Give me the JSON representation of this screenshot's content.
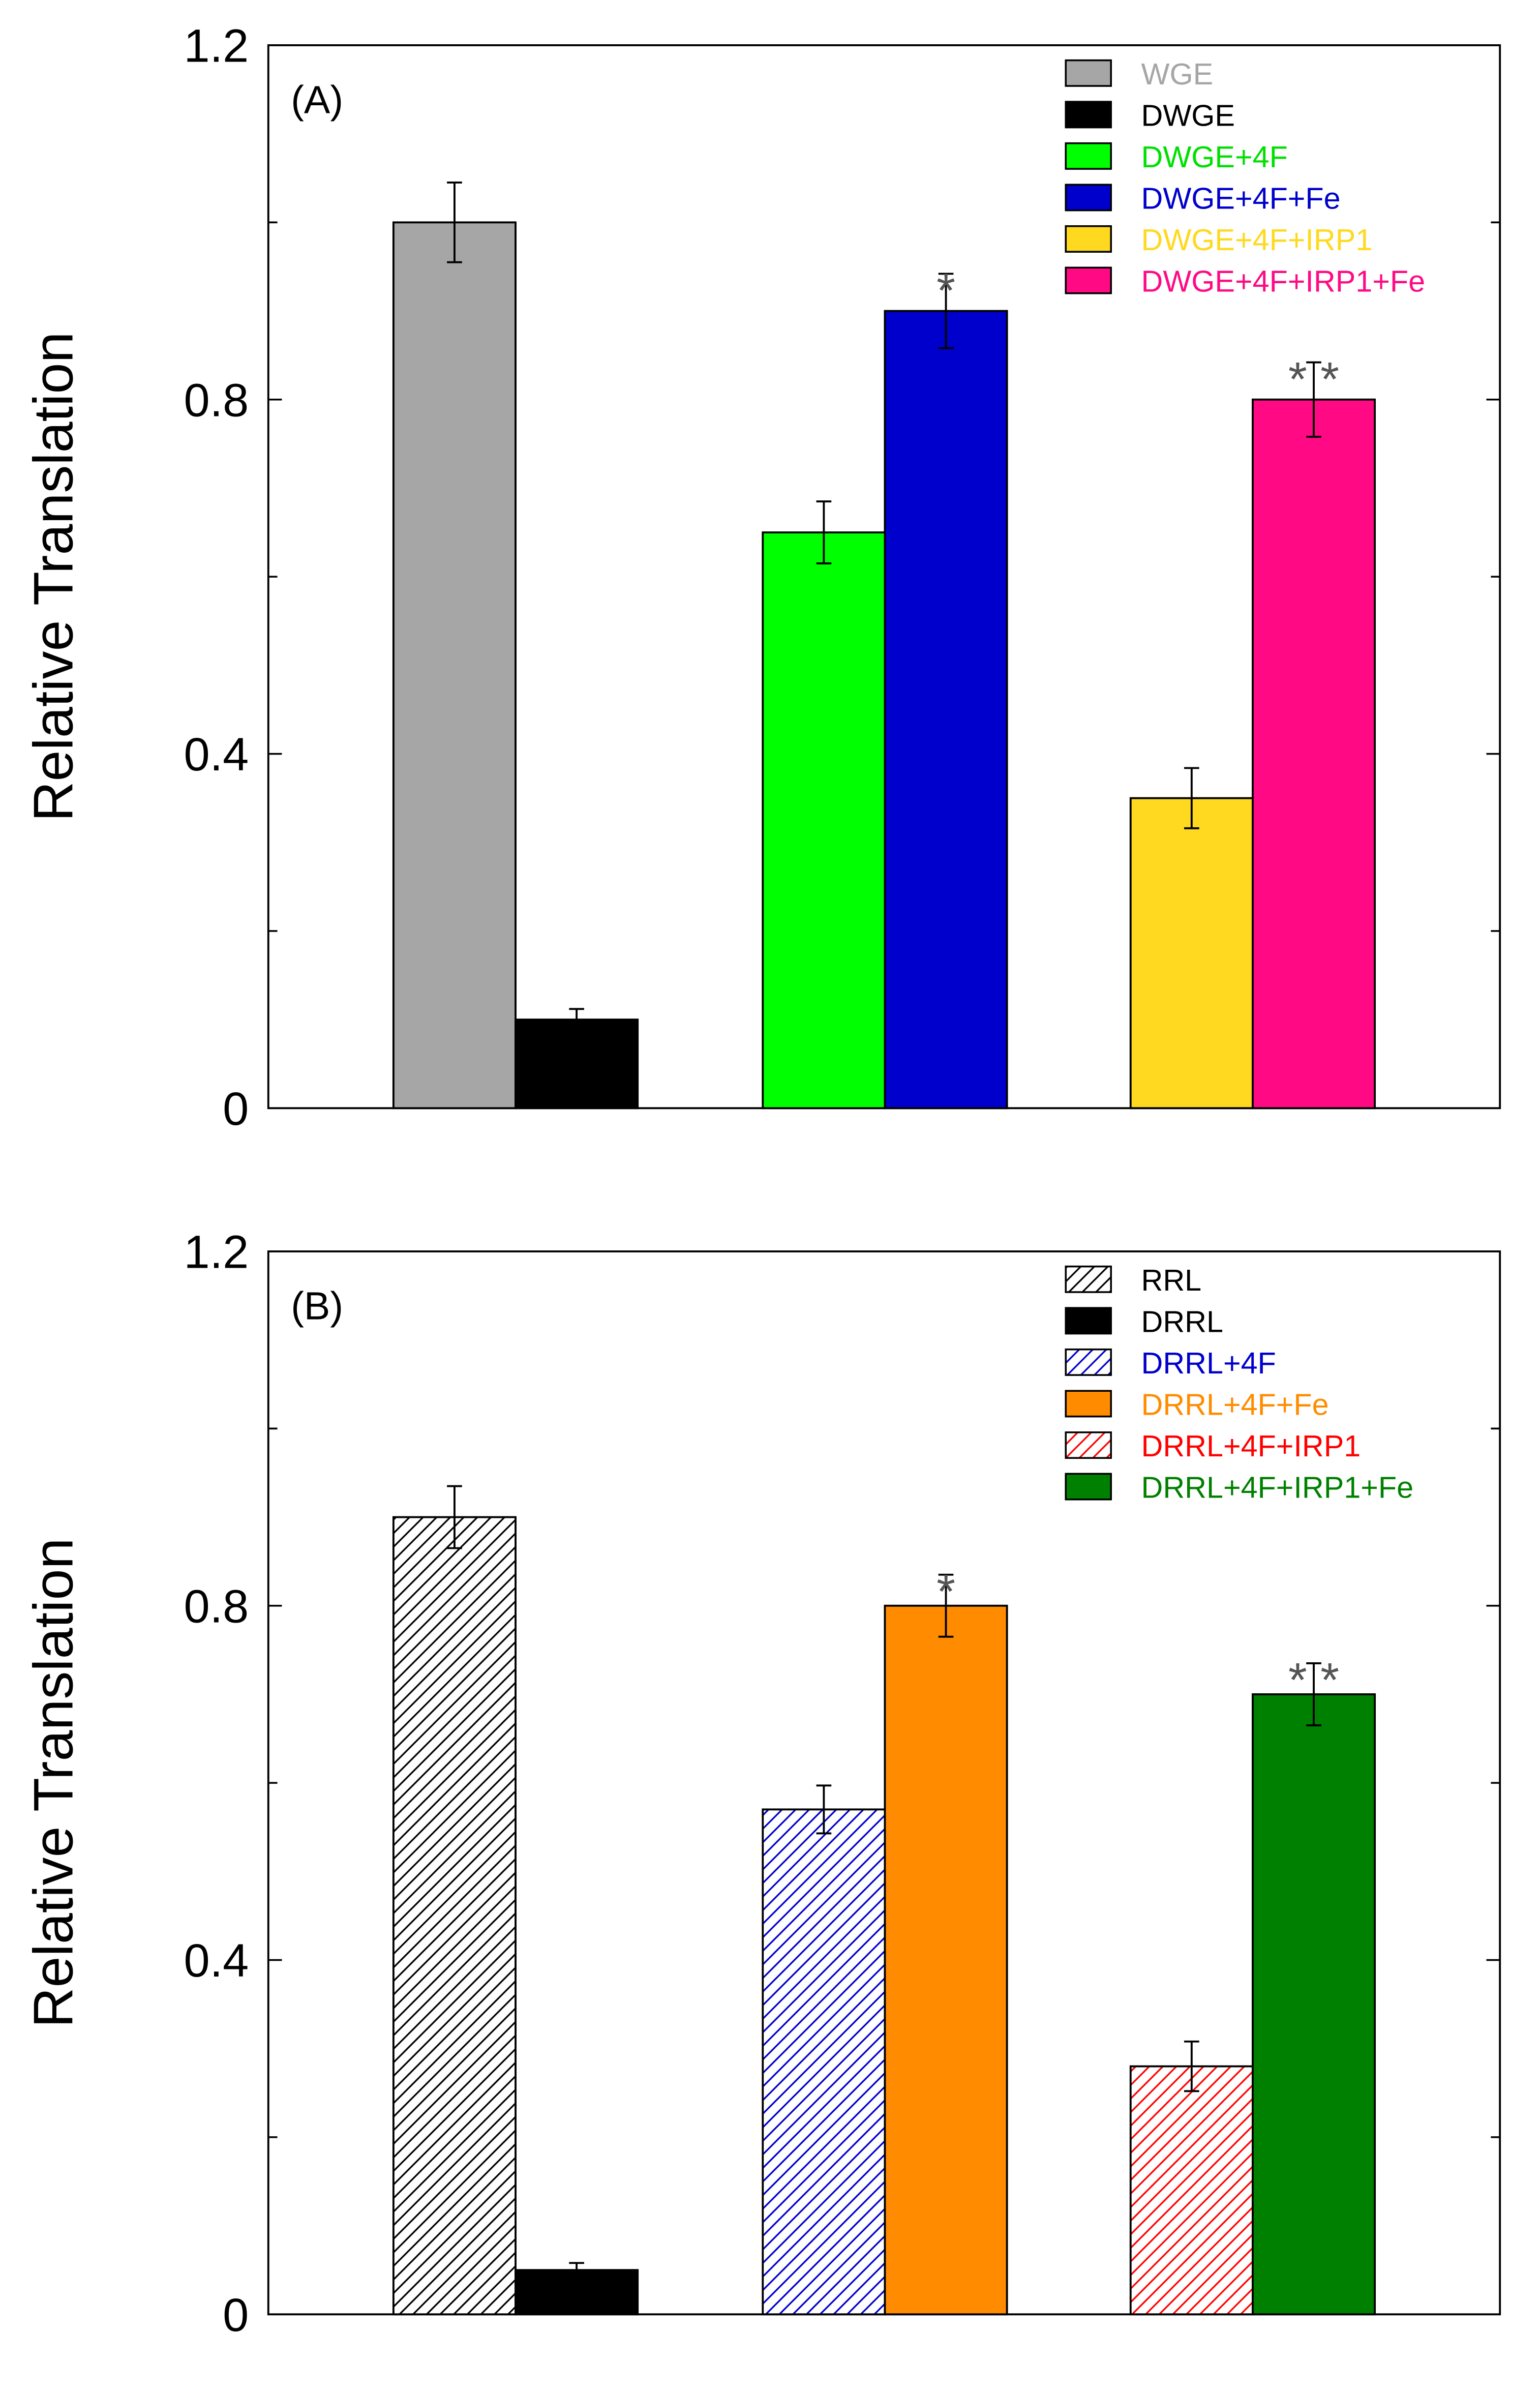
{
  "chart_data": [
    {
      "type": "bar",
      "panel_label": "(A)",
      "ylabel": "Relative Translation",
      "ylim": [
        0,
        1.2
      ],
      "yticks": [
        0,
        0.4,
        0.8,
        1.2
      ],
      "ytick_labels": [
        "0",
        "0.4",
        "0.8",
        "1.2"
      ],
      "legend_position": "top-right",
      "series": [
        {
          "name": "WGE",
          "value": 1.0,
          "error": 0.045,
          "color": "#a6a6a6",
          "pattern": "solid",
          "legend_text_color": "#a6a6a6",
          "annotation": ""
        },
        {
          "name": "DWGE",
          "value": 0.1,
          "error": 0.012,
          "color": "#000000",
          "pattern": "solid",
          "legend_text_color": "#000000",
          "annotation": ""
        },
        {
          "name": "DWGE+4F",
          "value": 0.65,
          "error": 0.035,
          "color": "#00ff00",
          "pattern": "solid",
          "legend_text_color": "#00e000",
          "annotation": ""
        },
        {
          "name": "DWGE+4F+Fe",
          "value": 0.9,
          "error": 0.042,
          "color": "#0000cc",
          "pattern": "solid",
          "legend_text_color": "#0000cc",
          "annotation": "*"
        },
        {
          "name": "DWGE+4F+IRP1",
          "value": 0.35,
          "error": 0.034,
          "color": "#ffd91f",
          "pattern": "solid",
          "legend_text_color": "#ffd91f",
          "annotation": ""
        },
        {
          "name": "DWGE+4F+IRP1+Fe",
          "value": 0.8,
          "error": 0.042,
          "color": "#ff0a84",
          "pattern": "solid",
          "legend_text_color": "#ff0a84",
          "annotation": "* *"
        }
      ]
    },
    {
      "type": "bar",
      "panel_label": "(B)",
      "ylabel": "Relative Translation",
      "ylim": [
        0,
        1.2
      ],
      "yticks": [
        0,
        0.4,
        0.8,
        1.2
      ],
      "ytick_labels": [
        "0",
        "0.4",
        "0.8",
        "1.2"
      ],
      "legend_position": "top-right",
      "series": [
        {
          "name": "RRL",
          "value": 0.9,
          "error": 0.035,
          "color": "#000000",
          "pattern": "hatch",
          "legend_text_color": "#000000",
          "annotation": ""
        },
        {
          "name": "DRRL",
          "value": 0.05,
          "error": 0.008,
          "color": "#000000",
          "pattern": "solid",
          "legend_text_color": "#000000",
          "annotation": ""
        },
        {
          "name": "DRRL+4F",
          "value": 0.57,
          "error": 0.027,
          "color": "#0000cc",
          "pattern": "hatch",
          "legend_text_color": "#0000cc",
          "annotation": ""
        },
        {
          "name": "DRRL+4F+Fe",
          "value": 0.8,
          "error": 0.035,
          "color": "#ff8c00",
          "pattern": "solid",
          "legend_text_color": "#ff8c00",
          "annotation": "*"
        },
        {
          "name": "DRRL+4F+IRP1",
          "value": 0.28,
          "error": 0.028,
          "color": "#ff0000",
          "pattern": "hatch",
          "legend_text_color": "#ff0000",
          "annotation": ""
        },
        {
          "name": "DRRL+4F+IRP1+Fe",
          "value": 0.7,
          "error": 0.035,
          "color": "#008000",
          "pattern": "solid",
          "legend_text_color": "#008000",
          "annotation": "* *"
        }
      ]
    }
  ]
}
